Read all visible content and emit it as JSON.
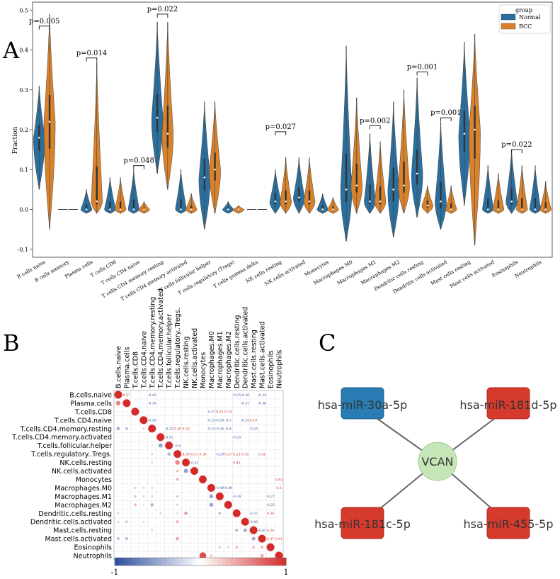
{
  "panel_labels": {
    "a": "A",
    "b": "B",
    "c": "C"
  },
  "colors": {
    "normal": "#2b6f9e",
    "bcc": "#d9822b",
    "mirna_blue": "#2a7db4",
    "mirna_red": "#d63a2c",
    "hub": "#c7e6b8",
    "edge": "#666666",
    "corr_pos": "#d42a2a",
    "corr_neg": "#2d4d9e"
  },
  "chart_data": [
    {
      "type": "violin",
      "ylabel": "Fraction",
      "ylim": [
        -0.12,
        0.52
      ],
      "yticks": [
        "0.5",
        "0.4",
        "0.3",
        "0.2",
        "0.1",
        "0.0",
        "-0.1"
      ],
      "legend": {
        "title": "group",
        "placement": "top-right",
        "entries": [
          "Normal",
          "BCC"
        ]
      },
      "categories": [
        "B cells naive",
        "B cells memory",
        "Plasma cells",
        "T cells CD8",
        "T cells CD4 naive",
        "T cells CD4 memory resting",
        "T cells CD4 memory activated",
        "T cells follicular helper",
        "T cells regulatory (Tregs)",
        "T cells gamma delta",
        "NK cells resting",
        "NK cells activated",
        "Monocytes",
        "Macrophages M0",
        "Macrophages M1",
        "Macrophages M2",
        "Dendritic cells resting",
        "Dendritic cells activated",
        "Mast cells resting",
        "Mast cells activated",
        "Eosinophils",
        "Neutrophils"
      ],
      "series": [
        {
          "name": "Normal",
          "min": [
            0.05,
            0.0,
            -0.01,
            -0.01,
            -0.01,
            0.09,
            -0.01,
            -0.05,
            -0.01,
            0.0,
            -0.01,
            -0.01,
            -0.01,
            -0.08,
            -0.01,
            -0.07,
            -0.02,
            -0.05,
            0.01,
            -0.01,
            -0.01,
            -0.01
          ],
          "median": [
            0.18,
            0.0,
            0.0,
            0.0,
            0.0,
            0.23,
            0.0,
            0.08,
            0.0,
            0.0,
            0.02,
            0.03,
            0.0,
            0.05,
            0.02,
            0.05,
            0.09,
            0.02,
            0.19,
            0.0,
            0.02,
            0.0
          ],
          "max": [
            0.31,
            0.0,
            0.05,
            0.08,
            0.1,
            0.47,
            0.1,
            0.27,
            0.02,
            0.0,
            0.1,
            0.13,
            0.04,
            0.41,
            0.19,
            0.27,
            0.33,
            0.22,
            0.42,
            0.11,
            0.15,
            0.11
          ]
        },
        {
          "name": "BCC",
          "min": [
            -0.05,
            0.0,
            -0.01,
            -0.01,
            -0.01,
            0.05,
            -0.01,
            -0.01,
            -0.01,
            0.0,
            -0.01,
            -0.01,
            -0.01,
            -0.01,
            -0.01,
            -0.01,
            -0.01,
            -0.01,
            -0.09,
            -0.01,
            -0.01,
            -0.01
          ],
          "median": [
            0.22,
            0.0,
            0.02,
            0.0,
            0.0,
            0.19,
            0.0,
            0.1,
            0.0,
            0.0,
            0.02,
            0.02,
            0.0,
            0.06,
            0.02,
            0.06,
            0.01,
            0.0,
            0.2,
            0.0,
            0.0,
            0.0
          ],
          "max": [
            0.49,
            0.0,
            0.37,
            0.08,
            0.02,
            0.47,
            0.04,
            0.27,
            0.01,
            0.0,
            0.13,
            0.13,
            0.03,
            0.28,
            0.17,
            0.3,
            0.06,
            0.06,
            0.44,
            0.09,
            0.11,
            0.07
          ]
        }
      ],
      "annotations": [
        {
          "category": "B cells naive",
          "text": "p=0.005",
          "y": 0.46
        },
        {
          "category": "Plasma cells",
          "text": "p=0.014",
          "y": 0.38
        },
        {
          "category": "T cells CD4 naive",
          "text": "p=0.048",
          "y": 0.11
        },
        {
          "category": "T cells CD4 memory resting",
          "text": "p=0.022",
          "y": 0.49
        },
        {
          "category": "NK cells resting",
          "text": "p=0.027",
          "y": 0.195
        },
        {
          "category": "Macrophages M1",
          "text": "p=0.002",
          "y": 0.21
        },
        {
          "category": "Dendritic cells resting",
          "text": "p=0.001",
          "y": 0.345
        },
        {
          "category": "Dendritic cells activated",
          "text": "p=0.001",
          "y": 0.23
        },
        {
          "category": "Eosinophils",
          "text": "p=0.022",
          "y": 0.15
        }
      ]
    },
    {
      "type": "heatmap",
      "layout": "upper-number-lower-circle",
      "colorbar": {
        "min": -1,
        "max": 1,
        "labels": [
          "-1",
          "1"
        ]
      },
      "labels": [
        "B.cells.naive",
        "Plasma.cells",
        "T.cells.CD8",
        "T.cells.CD4.naive",
        "T.cells.CD4.memory.resting",
        "T.cells.CD4.memory.activated",
        "T.cells.follicular.helper",
        "T.cells.regulatory..Tregs.",
        "NK.cells.resting",
        "NK.cells.activated",
        "Monocytes",
        "Macrophages.M0",
        "Macrophages.M1",
        "Macrophages.M2",
        "Dendritic.cells.resting",
        "Dendritic.cells.activated",
        "Mast.cells.resting",
        "Mast.cells.activated",
        "Eosinophils",
        "Neutrophils"
      ],
      "values": [
        [
          1,
          0.57,
          0,
          0,
          -0.43,
          0,
          0,
          0,
          0,
          0,
          0,
          0,
          0,
          0,
          -0.25,
          -0.26,
          0,
          -0.34,
          0,
          0
        ],
        [
          0.57,
          1,
          0,
          0,
          -0.36,
          0,
          0,
          0,
          0,
          0,
          0,
          0,
          0,
          0,
          0,
          -0.31,
          0,
          -0.36,
          0,
          0
        ],
        [
          0,
          0,
          1,
          0,
          0,
          0,
          0,
          0,
          0,
          0,
          0,
          -0.27,
          0.32,
          0.34,
          0,
          0,
          0,
          0,
          0,
          0
        ],
        [
          0,
          0,
          0,
          1,
          -0.26,
          0,
          0,
          0,
          0,
          0,
          0,
          -0.25,
          -0.26,
          -0.2,
          0,
          -0.25,
          0.16,
          0,
          0,
          0
        ],
        [
          -0.43,
          -0.36,
          0,
          -0.26,
          1,
          0,
          -0.22,
          0.26,
          0.25,
          0,
          0,
          -0.25,
          -0.26,
          -0.4,
          0,
          0,
          -0.25,
          0,
          0,
          0
        ],
        [
          0,
          0,
          0,
          0,
          0,
          1,
          -0.51,
          0,
          0,
          0,
          0,
          0,
          0,
          0,
          -0.25,
          0,
          0,
          0,
          0,
          0
        ],
        [
          0,
          0,
          0,
          0,
          -0.22,
          -0.51,
          1,
          -0.4,
          0,
          0,
          0,
          0,
          0,
          0,
          0,
          0,
          0,
          0,
          0,
          0
        ],
        [
          0,
          0,
          0,
          0,
          0.26,
          0,
          -0.4,
          1,
          0.56,
          0.31,
          0.36,
          0,
          -0.29,
          0.27,
          0.23,
          0.35,
          0,
          0.41,
          0,
          0
        ],
        [
          0,
          0,
          0,
          0,
          0.25,
          0,
          0,
          0.56,
          1,
          -0.52,
          0,
          0,
          0,
          0,
          0.43,
          0,
          0,
          0,
          0,
          0
        ],
        [
          0,
          0,
          0,
          0,
          0,
          0,
          0,
          0.31,
          -0.52,
          1,
          0,
          0,
          0,
          0,
          0,
          0,
          0,
          0,
          0,
          0
        ],
        [
          0,
          0,
          0,
          0,
          0,
          0,
          0,
          0.36,
          0,
          0,
          1,
          0,
          0,
          0,
          0,
          0,
          0,
          0,
          0,
          0.83
        ],
        [
          0,
          0,
          -0.27,
          -0.25,
          -0.25,
          0,
          0,
          0,
          0,
          0,
          0,
          1,
          -0.49,
          -0.49,
          0,
          0,
          0,
          0,
          0,
          0.3
        ],
        [
          0,
          0,
          0.32,
          -0.26,
          -0.26,
          0,
          0,
          -0.29,
          0,
          0,
          0,
          -0.49,
          1,
          0,
          -0.34,
          0,
          0,
          0,
          -0.27,
          0
        ],
        [
          0,
          0,
          0.34,
          -0.2,
          -0.4,
          0,
          0,
          0.27,
          0,
          0,
          0,
          -0.49,
          0,
          1,
          0,
          0,
          0,
          0,
          -0.25,
          0
        ],
        [
          -0.25,
          0,
          0,
          0,
          0,
          -0.25,
          0,
          0.23,
          0.43,
          0,
          0,
          0,
          -0.34,
          0,
          1,
          0,
          -0.37,
          0,
          0.34,
          0
        ],
        [
          -0.26,
          -0.31,
          0,
          -0.25,
          0,
          0,
          0,
          0.35,
          0,
          0,
          0,
          0,
          0,
          0,
          0,
          1,
          -0.45,
          0,
          0,
          0
        ],
        [
          0,
          0,
          0,
          0.16,
          -0.25,
          0,
          0,
          0,
          0,
          0,
          0,
          0,
          0,
          0,
          -0.37,
          -0.45,
          1,
          -0.45,
          0.34,
          0
        ],
        [
          -0.34,
          -0.36,
          0,
          0,
          0,
          0,
          0,
          0.41,
          0,
          0,
          0,
          0,
          0,
          0,
          0,
          0,
          -0.45,
          1,
          0.37,
          0.41
        ],
        [
          0,
          0,
          0,
          0,
          0,
          0,
          0,
          0,
          0,
          0,
          0,
          0,
          -0.27,
          -0.25,
          0.34,
          0,
          0.34,
          0.37,
          1,
          0
        ],
        [
          0,
          0,
          0,
          0,
          0,
          0,
          0,
          0,
          0,
          0,
          0.83,
          0.3,
          0,
          0,
          0,
          0,
          0,
          0.41,
          0,
          1
        ]
      ]
    }
  ],
  "network": {
    "hub": "VCAN",
    "nodes": [
      {
        "label": "hsa-miR-30a-5p",
        "color": "blue"
      },
      {
        "label": "hsa-miR-181d-5p",
        "color": "red"
      },
      {
        "label": "hsa-miR-181c-5p",
        "color": "red"
      },
      {
        "label": "hsa-miR-455-5p",
        "color": "red"
      }
    ]
  }
}
